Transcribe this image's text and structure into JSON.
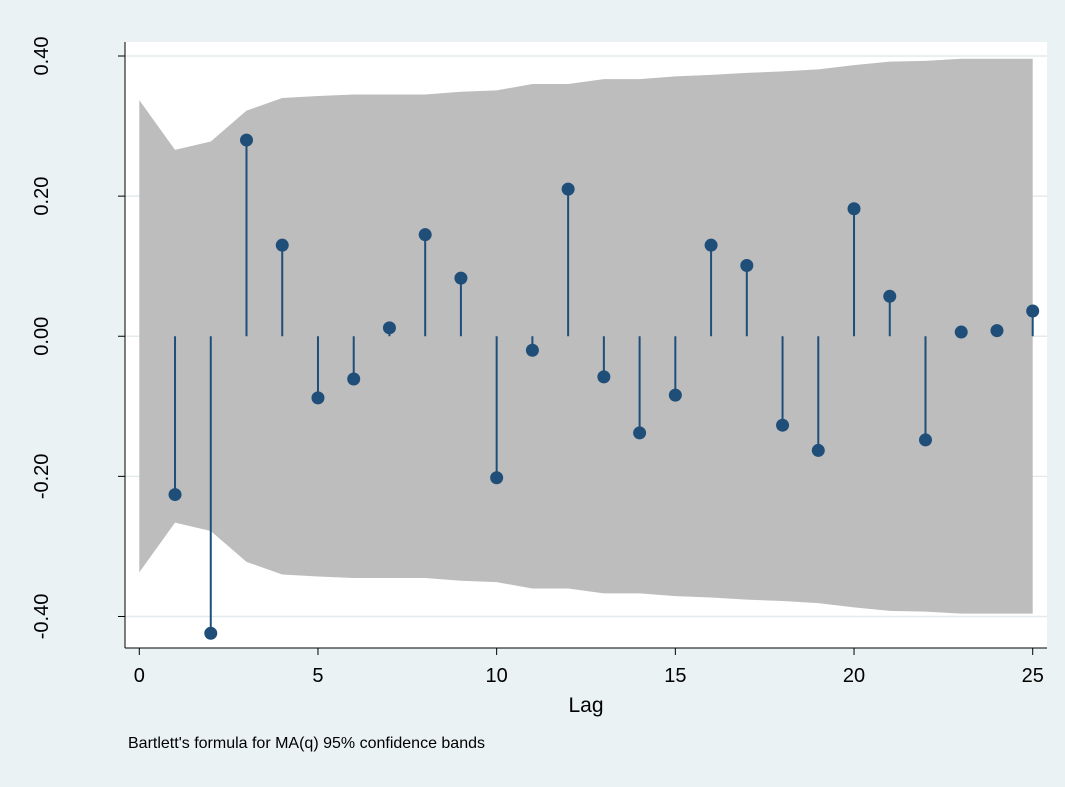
{
  "chart_data": {
    "type": "stem",
    "title": "",
    "xlabel": "Lag",
    "ylabel": "",
    "note": "Bartlett's formula for MA(q) 95% confidence bands",
    "xlim": [
      -0.4,
      25.4
    ],
    "ylim": [
      -0.445,
      0.42
    ],
    "x_ticks": [
      0,
      5,
      10,
      15,
      20,
      25
    ],
    "x_tick_labels": [
      "0",
      "5",
      "10",
      "15",
      "20",
      "25"
    ],
    "y_ticks": [
      -0.4,
      -0.2,
      0.0,
      0.2,
      0.4
    ],
    "y_tick_labels": [
      "-0.40",
      "-0.20",
      "0.00",
      "0.20",
      "0.40"
    ],
    "grid": "horizontal",
    "colors": {
      "background": "#eaf2f3",
      "plot_area": "#ffffff",
      "band": "#bdbdbd",
      "stem": "#1f4e79",
      "grid": "#e3ebee",
      "axis": "#000000"
    },
    "series": [
      {
        "lags": [
          1,
          2,
          3,
          4,
          5,
          6,
          7,
          8,
          9,
          10,
          11,
          12,
          13,
          14,
          15,
          16,
          17,
          18,
          19,
          20,
          21,
          22,
          23,
          24,
          25
        ],
        "values": [
          -0.226,
          -0.424,
          0.28,
          0.13,
          -0.088,
          -0.061,
          0.012,
          0.145,
          0.083,
          -0.202,
          -0.02,
          0.21,
          -0.058,
          -0.138,
          -0.084,
          0.13,
          0.101,
          -0.127,
          -0.163,
          0.182,
          0.057,
          -0.148,
          0.006,
          0.008,
          0.036
        ]
      }
    ],
    "confidence_band": {
      "lags": [
        0,
        1,
        2,
        3,
        4,
        5,
        6,
        7,
        8,
        9,
        10,
        11,
        12,
        13,
        14,
        15,
        16,
        17,
        18,
        19,
        20,
        21,
        22,
        23,
        24,
        25
      ],
      "upper": [
        0.337,
        0.266,
        0.278,
        0.322,
        0.34,
        0.343,
        0.345,
        0.345,
        0.345,
        0.349,
        0.351,
        0.36,
        0.36,
        0.367,
        0.367,
        0.371,
        0.373,
        0.376,
        0.378,
        0.381,
        0.387,
        0.392,
        0.393,
        0.396,
        0.396,
        0.396
      ]
    }
  }
}
